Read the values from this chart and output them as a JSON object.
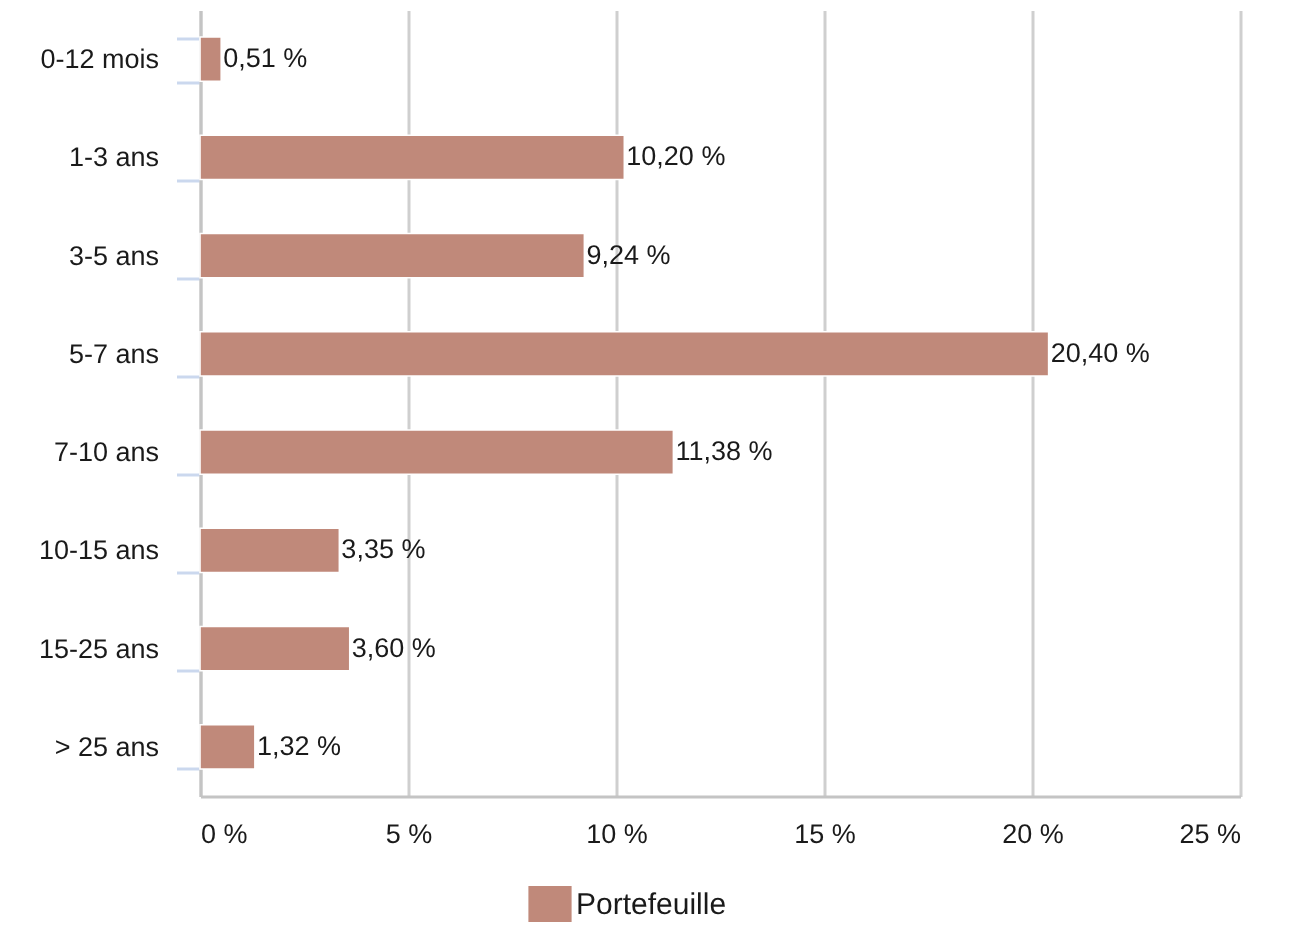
{
  "chart_data": {
    "type": "bar",
    "orientation": "horizontal",
    "categories": [
      "0-12 mois",
      "1-3 ans",
      "3-5 ans",
      "5-7 ans",
      "7-10 ans",
      "10-15 ans",
      "15-25 ans",
      "> 25 ans"
    ],
    "series": [
      {
        "name": "Portefeuille",
        "color": "#c0897a",
        "values": [
          0.51,
          10.2,
          9.24,
          20.4,
          11.38,
          3.35,
          3.6,
          1.32
        ],
        "value_labels": [
          "0,51 %",
          "10,20 %",
          "9,24 %",
          "20,40 %",
          "11,38 %",
          "3,35 %",
          "3,60 %",
          "1,32 %"
        ]
      }
    ],
    "xlim": [
      0,
      25
    ],
    "xticks": [
      {
        "value": 0,
        "label": "0 %"
      },
      {
        "value": 5,
        "label": "5 %"
      },
      {
        "value": 10,
        "label": "10 %"
      },
      {
        "value": 15,
        "label": "15 %"
      },
      {
        "value": 20,
        "label": "20 %"
      },
      {
        "value": 25,
        "label": "25 %"
      }
    ],
    "grid": "x",
    "legend": "bottom"
  }
}
